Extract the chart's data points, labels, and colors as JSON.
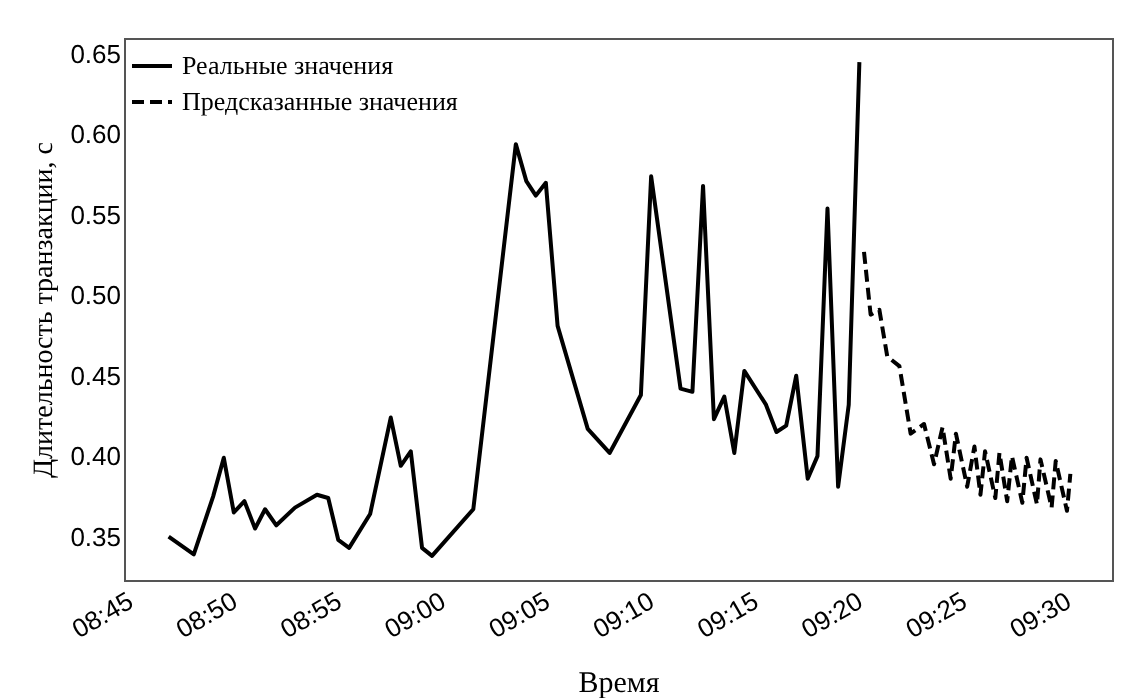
{
  "chart_data": {
    "type": "line",
    "xlabel": "Время",
    "ylabel": "Длительность транзакции, с",
    "legend": "top left",
    "grid": false,
    "xlim": [
      8.75,
      9.54
    ],
    "ylim": [
      0.323,
      0.66
    ],
    "xticks": [
      {
        "value": 8.75,
        "label": "08:45"
      },
      {
        "value": 8.8333,
        "label": "08:50"
      },
      {
        "value": 8.9167,
        "label": "08:55"
      },
      {
        "value": 9.0,
        "label": "09:00"
      },
      {
        "value": 9.0833,
        "label": "09:05"
      },
      {
        "value": 9.1667,
        "label": "09:10"
      },
      {
        "value": 9.25,
        "label": "09:15"
      },
      {
        "value": 9.3333,
        "label": "09:20"
      },
      {
        "value": 9.4167,
        "label": "09:25"
      },
      {
        "value": 9.5,
        "label": "09:30"
      }
    ],
    "yticks": [
      {
        "value": 0.35,
        "label": "0.35"
      },
      {
        "value": 0.4,
        "label": "0.40"
      },
      {
        "value": 0.45,
        "label": "0.45"
      },
      {
        "value": 0.5,
        "label": "0.50"
      },
      {
        "value": 0.55,
        "label": "0.55"
      },
      {
        "value": 0.6,
        "label": "0.60"
      },
      {
        "value": 0.65,
        "label": "0.65"
      }
    ],
    "series": [
      {
        "name": "Реальные значения",
        "color": "#000000",
        "line_style": "solid",
        "x": [
          8.7857,
          8.8058,
          8.8213,
          8.8298,
          8.8378,
          8.8463,
          8.8548,
          8.8628,
          8.8718,
          8.8867,
          8.9043,
          8.9133,
          8.9213,
          8.93,
          8.9468,
          8.9633,
          8.9713,
          8.9793,
          8.9883,
          8.9963,
          9.0293,
          9.0633,
          9.0717,
          9.0793,
          9.0873,
          9.0967,
          9.1208,
          9.1383,
          9.1633,
          9.1715,
          9.195,
          9.2045,
          9.213,
          9.2217,
          9.23,
          9.238,
          9.246,
          9.2633,
          9.2717,
          9.2795,
          9.2875,
          9.2967,
          9.3045,
          9.3125,
          9.321,
          9.3295,
          9.338
        ],
        "values": [
          0.35,
          0.339,
          0.375,
          0.399,
          0.365,
          0.372,
          0.355,
          0.367,
          0.357,
          0.368,
          0.376,
          0.374,
          0.348,
          0.343,
          0.364,
          0.424,
          0.394,
          0.403,
          0.343,
          0.338,
          0.367,
          0.594,
          0.571,
          0.562,
          0.57,
          0.481,
          0.417,
          0.402,
          0.438,
          0.574,
          0.442,
          0.44,
          0.568,
          0.423,
          0.437,
          0.402,
          0.453,
          0.432,
          0.415,
          0.419,
          0.45,
          0.386,
          0.4,
          0.554,
          0.381,
          0.432,
          0.645
        ]
      },
      {
        "name": "Предсказанные значения",
        "color": "#000000",
        "line_style": "dashed",
        "x": [
          9.3417,
          9.347,
          9.354,
          9.3603,
          9.37,
          9.379,
          9.3897,
          9.3977,
          9.4045,
          9.411,
          9.4152,
          9.4242,
          9.43,
          9.4348,
          9.4385,
          9.4467,
          9.45,
          9.4562,
          9.46,
          9.4683,
          9.4717,
          9.48,
          9.4828,
          9.4917,
          9.495,
          9.504,
          9.5067
        ],
        "values": [
          0.527,
          0.488,
          0.491,
          0.462,
          0.456,
          0.414,
          0.42,
          0.395,
          0.418,
          0.386,
          0.414,
          0.381,
          0.406,
          0.376,
          0.403,
          0.374,
          0.402,
          0.372,
          0.4,
          0.371,
          0.399,
          0.37,
          0.398,
          0.368,
          0.397,
          0.366,
          0.389
        ]
      }
    ]
  }
}
